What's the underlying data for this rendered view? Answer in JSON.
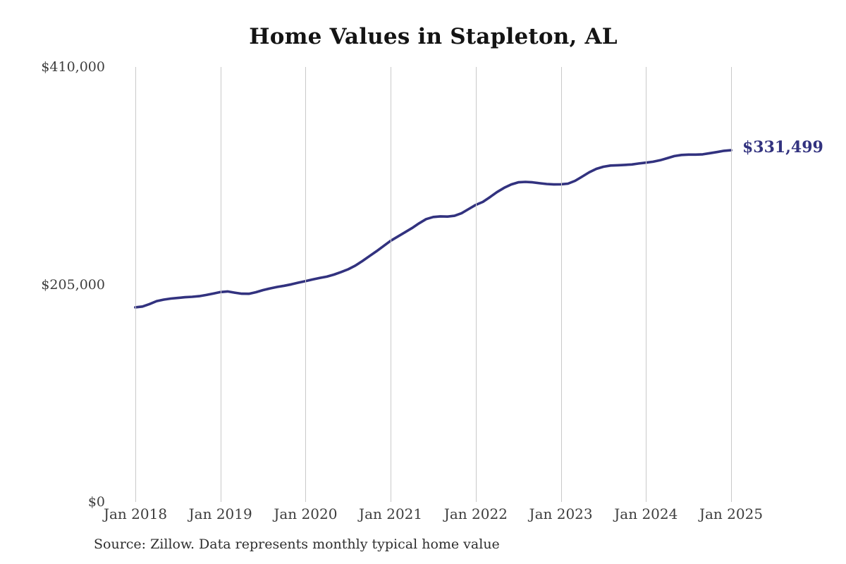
{
  "chart_data": {
    "type": "line",
    "title": "Home Values in Stapleton, AL",
    "xlabel": "",
    "ylabel": "",
    "ylim": [
      0,
      410000
    ],
    "y_ticks": [
      0,
      205000,
      410000
    ],
    "y_tick_labels": [
      "$0",
      "$205,000",
      "$410,000"
    ],
    "x_tick_labels": [
      "Jan 2018",
      "Jan 2019",
      "Jan 2020",
      "Jan 2021",
      "Jan 2022",
      "Jan 2023",
      "Jan 2024",
      "Jan 2025"
    ],
    "grid": "vertical-only",
    "legend": "none",
    "line_color": "#32327f",
    "gridline_color": "#c9c9c9",
    "end_label": "$331,499",
    "series": [
      {
        "name": "Monthly typical home value",
        "start_month": "Jan 2018",
        "end_month": "Jan 2025",
        "values": [
          183500,
          184200,
          186500,
          189300,
          190700,
          191700,
          192300,
          193000,
          193400,
          194000,
          195100,
          196400,
          197800,
          198400,
          197300,
          196300,
          196200,
          197700,
          199700,
          201300,
          202700,
          203800,
          205100,
          206700,
          208100,
          209700,
          211100,
          212400,
          214300,
          216700,
          219300,
          222700,
          227000,
          231700,
          236300,
          241300,
          246100,
          250100,
          254100,
          258100,
          262600,
          266600,
          268600,
          269200,
          269000,
          269700,
          272200,
          276100,
          280000,
          282800,
          287300,
          292100,
          296100,
          299300,
          301300,
          301700,
          301300,
          300400,
          299700,
          299300,
          299400,
          300000,
          302700,
          306700,
          310700,
          314000,
          316000,
          317100,
          317400,
          317700,
          318100,
          319000,
          319800,
          320700,
          322100,
          324000,
          326000,
          327100,
          327400,
          327400,
          327700,
          328700,
          329800,
          331000,
          331499
        ]
      }
    ]
  },
  "source_note": "Source: Zillow. Data represents monthly typical home value"
}
